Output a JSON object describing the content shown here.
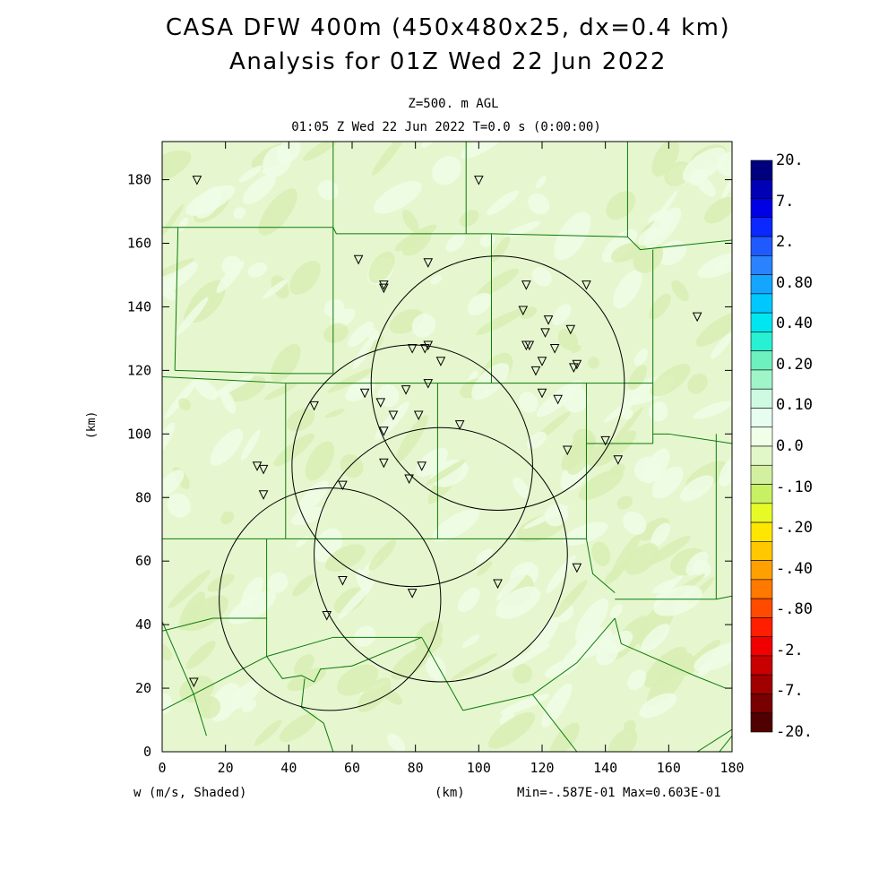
{
  "title": {
    "line1": "CASA DFW 400m (450x480x25, dx=0.4 km)",
    "line2": "Analysis for 01Z Wed 22 Jun 2022"
  },
  "subtitle": {
    "level": "Z=500. m AGL",
    "time": "01:05 Z Wed 22 Jun 2022   T=0.0 s (0:00:00)"
  },
  "axes": {
    "xlabel": "(km)",
    "ylabel": "(km)",
    "xrange": [
      0,
      180
    ],
    "yrange": [
      0,
      192
    ],
    "xticks": [
      0,
      20,
      40,
      60,
      80,
      100,
      120,
      140,
      160,
      180
    ],
    "yticks": [
      0,
      20,
      40,
      60,
      80,
      100,
      120,
      140,
      160,
      180
    ]
  },
  "footer": {
    "field": "w (m/s, Shaded)",
    "units": "(km)",
    "minmax": "Min=-.587E-01 Max=0.603E-01"
  },
  "colorbar": {
    "labels": [
      "20.",
      "7.",
      "2.",
      "0.80",
      "0.40",
      "0.20",
      "0.10",
      "0.0",
      "-.10",
      "-.20",
      "-.40",
      "-.80",
      "-2.",
      "-7.",
      "-20."
    ],
    "colors": [
      "#00007f",
      "#0000b4",
      "#0000e6",
      "#0a28ff",
      "#1f5aff",
      "#2a82ff",
      "#14a5ff",
      "#00c8ff",
      "#00e6f0",
      "#28f0d2",
      "#6ef0be",
      "#a0f5c8",
      "#cdfae1",
      "#e6fdef",
      "#f0ffe8",
      "#e2f7c8",
      "#d2f0a0",
      "#c8f064",
      "#e6fa28",
      "#ffe600",
      "#ffc800",
      "#ffa000",
      "#ff7800",
      "#ff4b00",
      "#ff1e00",
      "#f00000",
      "#c80000",
      "#a00000",
      "#780000",
      "#500000"
    ]
  },
  "colors": {
    "background_field": "#e6f7cf",
    "positive_field": "#eefde6",
    "negative_field": "#d8efb4",
    "county_lines": "#0a7a0a",
    "radar_rings": "#000000",
    "station_markers": "#000000"
  },
  "map_data": {
    "radars": [
      {
        "x": 53,
        "y": 48,
        "r": 35
      },
      {
        "x": 79,
        "y": 90,
        "r": 38
      },
      {
        "x": 106,
        "y": 116,
        "r": 40
      },
      {
        "x": 88,
        "y": 62,
        "r": 40
      }
    ],
    "stations": [
      [
        11,
        180
      ],
      [
        100,
        180
      ],
      [
        62,
        155
      ],
      [
        84,
        154
      ],
      [
        70,
        147
      ],
      [
        70,
        146
      ],
      [
        115,
        147
      ],
      [
        134,
        147
      ],
      [
        114,
        139
      ],
      [
        122,
        136
      ],
      [
        129,
        133
      ],
      [
        121,
        132
      ],
      [
        115,
        128
      ],
      [
        116,
        128
      ],
      [
        124,
        127
      ],
      [
        79,
        127
      ],
      [
        83,
        127
      ],
      [
        84,
        128
      ],
      [
        88,
        123
      ],
      [
        120,
        123
      ],
      [
        131,
        122
      ],
      [
        130,
        121
      ],
      [
        118,
        120
      ],
      [
        64,
        113
      ],
      [
        77,
        114
      ],
      [
        84,
        116
      ],
      [
        120,
        113
      ],
      [
        125,
        111
      ],
      [
        69,
        110
      ],
      [
        48,
        109
      ],
      [
        73,
        106
      ],
      [
        81,
        106
      ],
      [
        94,
        103
      ],
      [
        70,
        101
      ],
      [
        140,
        98
      ],
      [
        128,
        95
      ],
      [
        144,
        92
      ],
      [
        70,
        91
      ],
      [
        30,
        90
      ],
      [
        32,
        89
      ],
      [
        82,
        90
      ],
      [
        78,
        86
      ],
      [
        57,
        84
      ],
      [
        32,
        81
      ],
      [
        131,
        58
      ],
      [
        106,
        53
      ],
      [
        57,
        54
      ],
      [
        79,
        50
      ],
      [
        52,
        43
      ],
      [
        10,
        22
      ],
      [
        169,
        137
      ]
    ],
    "boundaries": [
      [
        [
          0,
          165
        ],
        [
          54,
          165
        ]
      ],
      [
        [
          54,
          192
        ],
        [
          54,
          165
        ]
      ],
      [
        [
          54,
          165
        ],
        [
          55,
          163
        ],
        [
          78,
          163
        ]
      ],
      [
        [
          78,
          163
        ],
        [
          104,
          163
        ]
      ],
      [
        [
          96,
          192
        ],
        [
          96,
          163
        ]
      ],
      [
        [
          104,
          163
        ],
        [
          147,
          162
        ]
      ],
      [
        [
          147,
          192
        ],
        [
          147,
          162
        ]
      ],
      [
        [
          147,
          162
        ],
        [
          151,
          158
        ],
        [
          180,
          161
        ]
      ],
      [
        [
          5,
          165
        ],
        [
          4,
          120
        ]
      ],
      [
        [
          4,
          120
        ],
        [
          39,
          119
        ]
      ],
      [
        [
          54,
          165
        ],
        [
          54,
          119
        ]
      ],
      [
        [
          54,
          119
        ],
        [
          39,
          119
        ]
      ],
      [
        [
          104,
          163
        ],
        [
          104,
          116
        ]
      ],
      [
        [
          54,
          116
        ],
        [
          104,
          116
        ]
      ],
      [
        [
          104,
          116
        ],
        [
          130,
          116
        ]
      ],
      [
        [
          130,
          116
        ],
        [
          155,
          116
        ]
      ],
      [
        [
          155,
          158
        ],
        [
          155,
          100
        ]
      ],
      [
        [
          155,
          100
        ],
        [
          160,
          100
        ],
        [
          180,
          97
        ]
      ],
      [
        [
          0,
          118
        ],
        [
          39,
          116
        ]
      ],
      [
        [
          39,
          116
        ],
        [
          39,
          67
        ]
      ],
      [
        [
          39,
          67
        ],
        [
          0,
          67
        ]
      ],
      [
        [
          39,
          116
        ],
        [
          54,
          116
        ]
      ],
      [
        [
          87,
          116
        ],
        [
          87,
          67
        ]
      ],
      [
        [
          39,
          67
        ],
        [
          87,
          67
        ]
      ],
      [
        [
          87,
          67
        ],
        [
          134,
          67
        ]
      ],
      [
        [
          134,
          116
        ],
        [
          134,
          67
        ]
      ],
      [
        [
          134,
          97
        ],
        [
          155,
          97
        ]
      ],
      [
        [
          155,
          100
        ],
        [
          155,
          97
        ]
      ],
      [
        [
          175,
          100
        ],
        [
          175,
          48
        ]
      ],
      [
        [
          134,
          67
        ],
        [
          136,
          56
        ],
        [
          143,
          50
        ]
      ],
      [
        [
          143,
          48
        ],
        [
          175,
          48
        ]
      ],
      [
        [
          175,
          48
        ],
        [
          180,
          49
        ]
      ],
      [
        [
          33,
          67
        ],
        [
          33,
          42
        ]
      ],
      [
        [
          33,
          42
        ],
        [
          16,
          42
        ]
      ],
      [
        [
          0,
          38
        ],
        [
          16,
          42
        ]
      ],
      [
        [
          33,
          42
        ],
        [
          33,
          30
        ]
      ],
      [
        [
          0,
          13
        ],
        [
          33,
          30
        ]
      ],
      [
        [
          33,
          30
        ],
        [
          38,
          23
        ],
        [
          44,
          24
        ],
        [
          48,
          22
        ],
        [
          50,
          26
        ],
        [
          60,
          27
        ]
      ],
      [
        [
          60,
          27
        ],
        [
          82,
          36
        ]
      ],
      [
        [
          33,
          30
        ],
        [
          54,
          36
        ],
        [
          82,
          36
        ]
      ],
      [
        [
          82,
          36
        ],
        [
          95,
          13
        ]
      ],
      [
        [
          95,
          13
        ],
        [
          117,
          18
        ]
      ],
      [
        [
          117,
          18
        ],
        [
          131,
          28
        ],
        [
          143,
          42
        ]
      ],
      [
        [
          143,
          42
        ],
        [
          145,
          34
        ],
        [
          168,
          24
        ]
      ],
      [
        [
          168,
          24
        ],
        [
          178,
          20
        ]
      ],
      [
        [
          117,
          18
        ],
        [
          131,
          0
        ]
      ],
      [
        [
          0,
          41
        ],
        [
          10,
          18
        ],
        [
          14,
          5
        ]
      ],
      [
        [
          45,
          23
        ],
        [
          44,
          14
        ],
        [
          51,
          9
        ],
        [
          54,
          0
        ]
      ],
      [
        [
          169,
          0
        ],
        [
          180,
          7
        ]
      ],
      [
        [
          176,
          0
        ],
        [
          180,
          5
        ]
      ]
    ]
  }
}
